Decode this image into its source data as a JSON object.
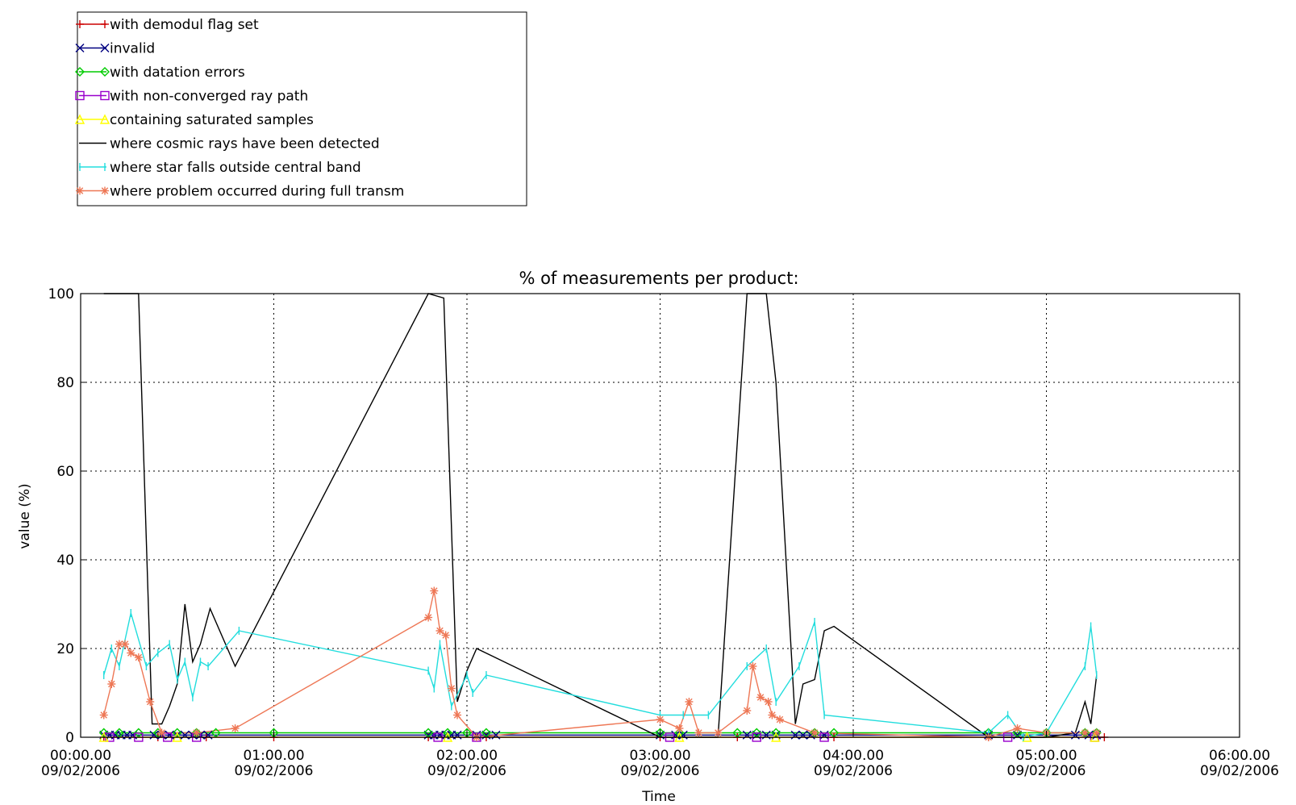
{
  "chart_data": {
    "type": "line",
    "title": "% of measurements per product:",
    "xlabel": "Time",
    "ylabel": "value (%)",
    "ylim": [
      0,
      100
    ],
    "yticks": [
      "0",
      "20",
      "40",
      "60",
      "80",
      "100"
    ],
    "xticks": [
      {
        "time": "00:00.00",
        "date": "09/02/2006",
        "hours": 0
      },
      {
        "time": "01:00.00",
        "date": "09/02/2006",
        "hours": 1
      },
      {
        "time": "02:00.00",
        "date": "09/02/2006",
        "hours": 2
      },
      {
        "time": "03:00.00",
        "date": "09/02/2006",
        "hours": 3
      },
      {
        "time": "04:00.00",
        "date": "09/02/2006",
        "hours": 4
      },
      {
        "time": "05:00.00",
        "date": "09/02/2006",
        "hours": 5
      },
      {
        "time": "06:00.00",
        "date": "09/02/2006",
        "hours": 6
      }
    ],
    "xlim_hours": [
      0,
      6
    ],
    "grid": true,
    "legend_position": "top-left, above plot",
    "series": [
      {
        "name": "with demodul flag set",
        "color": "#cc0000",
        "marker": "plus",
        "points": [
          [
            0.12,
            0
          ],
          [
            0.4,
            0
          ],
          [
            0.65,
            0
          ],
          [
            1.0,
            0
          ],
          [
            1.8,
            0
          ],
          [
            2.1,
            0
          ],
          [
            3.0,
            0
          ],
          [
            3.4,
            0
          ],
          [
            3.9,
            0
          ],
          [
            4.7,
            0
          ],
          [
            5.3,
            0
          ]
        ]
      },
      {
        "name": "invalid",
        "color": "#000080",
        "marker": "x",
        "points": [
          [
            0.12,
            0.5
          ],
          [
            0.15,
            0.5
          ],
          [
            0.18,
            0.5
          ],
          [
            0.21,
            0.5
          ],
          [
            0.24,
            0.5
          ],
          [
            0.27,
            0.5
          ],
          [
            0.38,
            0.5
          ],
          [
            0.42,
            0.5
          ],
          [
            0.46,
            0.5
          ],
          [
            0.5,
            0.5
          ],
          [
            0.54,
            0.5
          ],
          [
            0.58,
            0.5
          ],
          [
            0.62,
            0.5
          ],
          [
            0.66,
            0.5
          ],
          [
            1.8,
            0.5
          ],
          [
            1.83,
            0.5
          ],
          [
            1.86,
            0.5
          ],
          [
            1.89,
            0.5
          ],
          [
            1.92,
            0.5
          ],
          [
            1.95,
            0.5
          ],
          [
            2.05,
            0.5
          ],
          [
            2.1,
            0.5
          ],
          [
            2.15,
            0.5
          ],
          [
            3.0,
            0.5
          ],
          [
            3.08,
            0.5
          ],
          [
            3.12,
            0.5
          ],
          [
            3.45,
            0.5
          ],
          [
            3.5,
            0.5
          ],
          [
            3.55,
            0.5
          ],
          [
            3.6,
            0.5
          ],
          [
            3.7,
            0.5
          ],
          [
            3.74,
            0.5
          ],
          [
            3.78,
            0.5
          ],
          [
            3.85,
            0.5
          ],
          [
            4.7,
            0.5
          ],
          [
            4.85,
            0.5
          ],
          [
            5.15,
            0.5
          ],
          [
            5.22,
            0.5
          ],
          [
            5.26,
            0.5
          ]
        ]
      },
      {
        "name": "with datation errors",
        "color": "#00cc00",
        "marker": "diamond",
        "points": [
          [
            0.12,
            1
          ],
          [
            0.2,
            1
          ],
          [
            0.3,
            1
          ],
          [
            0.4,
            1
          ],
          [
            0.5,
            1
          ],
          [
            0.6,
            1
          ],
          [
            0.7,
            1
          ],
          [
            1.0,
            1
          ],
          [
            1.8,
            1
          ],
          [
            1.9,
            1
          ],
          [
            2.0,
            1
          ],
          [
            2.1,
            1
          ],
          [
            3.0,
            1
          ],
          [
            3.1,
            1
          ],
          [
            3.4,
            1
          ],
          [
            3.5,
            1
          ],
          [
            3.6,
            1
          ],
          [
            3.8,
            1
          ],
          [
            3.9,
            1
          ],
          [
            4.7,
            1
          ],
          [
            4.85,
            1
          ],
          [
            5.0,
            1
          ],
          [
            5.2,
            1
          ],
          [
            5.26,
            1
          ]
        ]
      },
      {
        "name": "with non-converged ray path",
        "color": "#9900cc",
        "marker": "square",
        "points": [
          [
            0.15,
            0
          ],
          [
            0.3,
            0
          ],
          [
            0.45,
            0
          ],
          [
            0.6,
            0
          ],
          [
            1.85,
            0
          ],
          [
            2.05,
            0
          ],
          [
            3.05,
            0
          ],
          [
            3.5,
            0
          ],
          [
            3.85,
            0
          ],
          [
            4.8,
            0
          ],
          [
            5.25,
            0
          ]
        ]
      },
      {
        "name": "containing saturated samples",
        "color": "#ffff00",
        "marker": "triangle",
        "points": [
          [
            0.12,
            0
          ],
          [
            0.5,
            0
          ],
          [
            1.9,
            0
          ],
          [
            3.1,
            0
          ],
          [
            3.6,
            0
          ],
          [
            4.9,
            0
          ],
          [
            5.25,
            0
          ]
        ]
      },
      {
        "name": "where cosmic rays have been detected",
        "color": "#000000",
        "marker": "none",
        "points": [
          [
            0.12,
            100
          ],
          [
            0.3,
            100
          ],
          [
            0.37,
            3
          ],
          [
            0.42,
            3
          ],
          [
            0.46,
            7
          ],
          [
            0.5,
            12
          ],
          [
            0.54,
            30
          ],
          [
            0.58,
            17
          ],
          [
            0.62,
            21
          ],
          [
            0.67,
            29
          ],
          [
            0.8,
            16
          ],
          [
            1.8,
            100
          ],
          [
            1.88,
            99
          ],
          [
            1.95,
            8
          ],
          [
            2.0,
            15
          ],
          [
            2.05,
            20
          ],
          [
            3.0,
            0
          ],
          [
            3.1,
            0
          ],
          [
            3.2,
            0
          ],
          [
            3.3,
            0
          ],
          [
            3.45,
            100
          ],
          [
            3.55,
            100
          ],
          [
            3.6,
            80
          ],
          [
            3.7,
            3
          ],
          [
            3.74,
            12
          ],
          [
            3.8,
            13
          ],
          [
            3.85,
            24
          ],
          [
            3.9,
            25
          ],
          [
            4.7,
            0
          ],
          [
            4.85,
            0
          ],
          [
            5.0,
            0
          ],
          [
            5.15,
            1
          ],
          [
            5.2,
            8
          ],
          [
            5.23,
            3
          ],
          [
            5.26,
            14
          ]
        ]
      },
      {
        "name": "where star falls outside central band",
        "color": "#22dddd",
        "marker": "vbar",
        "points": [
          [
            0.12,
            14
          ],
          [
            0.16,
            20
          ],
          [
            0.2,
            16
          ],
          [
            0.26,
            28
          ],
          [
            0.34,
            16
          ],
          [
            0.4,
            19
          ],
          [
            0.46,
            21
          ],
          [
            0.5,
            13
          ],
          [
            0.54,
            17
          ],
          [
            0.58,
            9
          ],
          [
            0.62,
            17
          ],
          [
            0.66,
            16
          ],
          [
            0.82,
            24
          ],
          [
            1.8,
            15
          ],
          [
            1.83,
            11
          ],
          [
            1.86,
            21
          ],
          [
            1.92,
            7
          ],
          [
            2.0,
            14
          ],
          [
            2.03,
            10
          ],
          [
            2.1,
            14
          ],
          [
            3.0,
            5
          ],
          [
            3.12,
            5
          ],
          [
            3.25,
            5
          ],
          [
            3.45,
            16
          ],
          [
            3.55,
            20
          ],
          [
            3.6,
            8
          ],
          [
            3.72,
            16
          ],
          [
            3.8,
            26
          ],
          [
            3.85,
            5
          ],
          [
            4.7,
            1
          ],
          [
            4.8,
            5
          ],
          [
            4.88,
            0
          ],
          [
            5.0,
            1
          ],
          [
            5.2,
            16
          ],
          [
            5.23,
            25
          ],
          [
            5.26,
            14
          ]
        ]
      },
      {
        "name": "where problem occurred during full transm",
        "color": "#ee7755",
        "marker": "asterisk",
        "points": [
          [
            0.12,
            5
          ],
          [
            0.16,
            12
          ],
          [
            0.2,
            21
          ],
          [
            0.23,
            21
          ],
          [
            0.26,
            19
          ],
          [
            0.3,
            18
          ],
          [
            0.36,
            8
          ],
          [
            0.42,
            1
          ],
          [
            0.6,
            1
          ],
          [
            0.8,
            2
          ],
          [
            1.8,
            27
          ],
          [
            1.83,
            33
          ],
          [
            1.86,
            24
          ],
          [
            1.89,
            23
          ],
          [
            1.92,
            11
          ],
          [
            1.95,
            5
          ],
          [
            2.05,
            0
          ],
          [
            3.0,
            4
          ],
          [
            3.1,
            2
          ],
          [
            3.15,
            8
          ],
          [
            3.2,
            1
          ],
          [
            3.3,
            1
          ],
          [
            3.45,
            6
          ],
          [
            3.48,
            16
          ],
          [
            3.52,
            9
          ],
          [
            3.56,
            8
          ],
          [
            3.58,
            5
          ],
          [
            3.62,
            4
          ],
          [
            3.8,
            1
          ],
          [
            4.7,
            0
          ],
          [
            4.85,
            2
          ],
          [
            5.0,
            1
          ],
          [
            5.2,
            1
          ],
          [
            5.26,
            1
          ]
        ]
      }
    ]
  }
}
